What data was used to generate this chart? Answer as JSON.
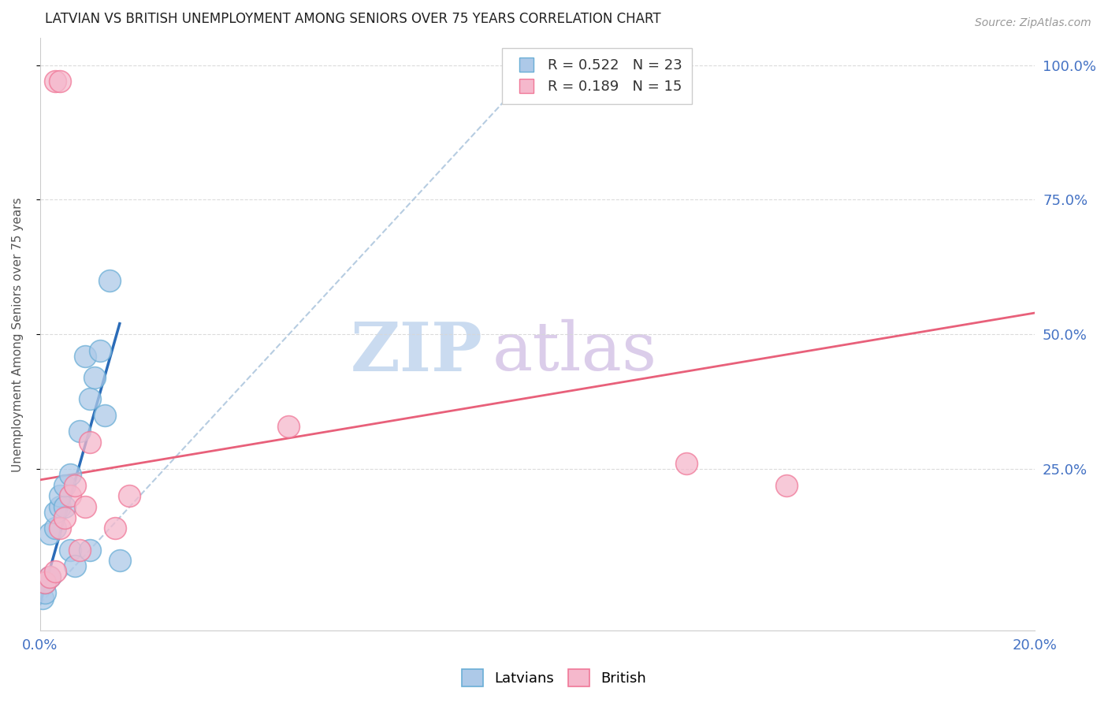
{
  "title": "LATVIAN VS BRITISH UNEMPLOYMENT AMONG SENIORS OVER 75 YEARS CORRELATION CHART",
  "source": "Source: ZipAtlas.com",
  "ylabel": "Unemployment Among Seniors over 75 years",
  "xlim": [
    0.0,
    0.2
  ],
  "ylim": [
    -0.05,
    1.05
  ],
  "xticks": [
    0.0,
    0.04,
    0.08,
    0.12,
    0.16,
    0.2
  ],
  "xticklabels": [
    "0.0%",
    "",
    "",
    "",
    "",
    "20.0%"
  ],
  "yticks": [
    0.25,
    0.5,
    0.75,
    1.0
  ],
  "yticklabels": [
    "25.0%",
    "50.0%",
    "75.0%",
    "100.0%"
  ],
  "latvian_color": "#adc9e8",
  "british_color": "#f5b8cc",
  "latvian_edge": "#6aaed6",
  "british_edge": "#f07898",
  "trendline_latvian_color": "#2b6cb8",
  "trendline_british_color": "#e8607a",
  "refline_color": "#aac4dc",
  "grid_color": "#d8d8d8",
  "axis_label_color": "#4472c4",
  "title_color": "#222222",
  "watermark_zip_color": "#c5d8ef",
  "watermark_atlas_color": "#d8c8e8",
  "legend_R_latvian": "R = 0.522",
  "legend_N_latvian": "N = 23",
  "legend_R_british": "R = 0.189",
  "legend_N_british": "N = 15",
  "latvian_x": [
    0.0005,
    0.001,
    0.001,
    0.002,
    0.002,
    0.003,
    0.003,
    0.004,
    0.004,
    0.005,
    0.005,
    0.006,
    0.006,
    0.007,
    0.008,
    0.009,
    0.01,
    0.01,
    0.011,
    0.012,
    0.013,
    0.014,
    0.016
  ],
  "latvian_y": [
    0.01,
    0.02,
    0.04,
    0.05,
    0.13,
    0.14,
    0.17,
    0.18,
    0.2,
    0.18,
    0.22,
    0.1,
    0.24,
    0.07,
    0.32,
    0.46,
    0.1,
    0.38,
    0.42,
    0.47,
    0.35,
    0.6,
    0.08
  ],
  "british_x": [
    0.001,
    0.002,
    0.003,
    0.004,
    0.005,
    0.006,
    0.007,
    0.008,
    0.009,
    0.01,
    0.015,
    0.018,
    0.05,
    0.13,
    0.15
  ],
  "british_y": [
    0.04,
    0.05,
    0.06,
    0.14,
    0.16,
    0.2,
    0.22,
    0.1,
    0.18,
    0.3,
    0.14,
    0.2,
    0.33,
    0.26,
    0.22
  ],
  "latvian_trendline_x": [
    0.0,
    0.016
  ],
  "latvian_trendline_y": [
    0.0,
    0.52
  ],
  "british_trendline_x": [
    0.0,
    0.2
  ],
  "british_trendline_y": [
    0.23,
    0.54
  ],
  "refline_x": [
    0.0,
    0.1
  ],
  "refline_y": [
    0.0,
    1.0
  ],
  "dot_size": 400
}
